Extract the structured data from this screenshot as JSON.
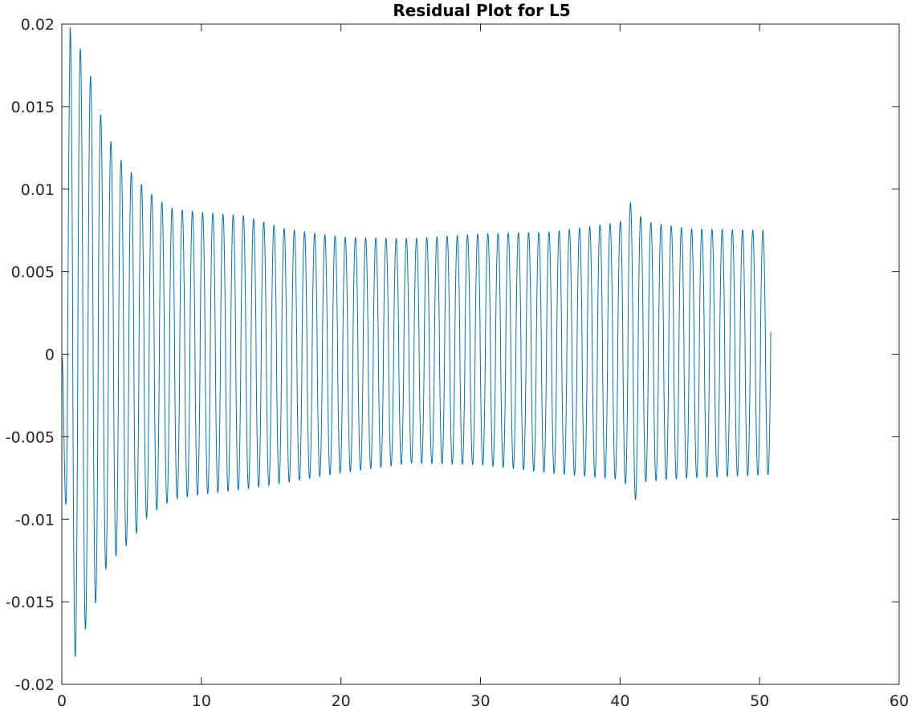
{
  "chart_data": {
    "type": "line",
    "title": "Residual Plot for L5",
    "xlabel": "",
    "ylabel": "",
    "xlim": [
      0,
      60
    ],
    "ylim": [
      -0.02,
      0.02
    ],
    "x_ticks": [
      0,
      10,
      20,
      30,
      40,
      50,
      60
    ],
    "x_tick_labels": [
      "0",
      "10",
      "20",
      "30",
      "40",
      "50",
      "60"
    ],
    "y_ticks": [
      0.02,
      0.015,
      0.01,
      0.005,
      0,
      -0.005,
      -0.01,
      -0.015,
      -0.02
    ],
    "y_tick_labels": [
      "0.02",
      "0.015",
      "0.01",
      "0.005",
      "0",
      "-0.005",
      "-0.01",
      "-0.015",
      "-0.02"
    ],
    "grid": false,
    "box": true,
    "series": [
      {
        "color": "#0072BD",
        "description": "Residual oscillation, period ~0.73, data x from 0 to ~50.8",
        "period": 0.73,
        "x_start": 0.0,
        "x_end": 50.8,
        "envelope_x": [
          0.0,
          0.6,
          1.5,
          2.2,
          3.0,
          4.0,
          5.0,
          6.0,
          7.0,
          8.0,
          10.0,
          13.0,
          16.0,
          20.0,
          25.0,
          30.0,
          35.0,
          40.0,
          40.6,
          41.0,
          41.4,
          42.0,
          45.0,
          50.8
        ],
        "envelope_upper": [
          0.0,
          0.0198,
          0.0182,
          0.0165,
          0.0138,
          0.012,
          0.011,
          0.01,
          0.0093,
          0.0088,
          0.0086,
          0.0084,
          0.0076,
          0.0071,
          0.007,
          0.0073,
          0.0074,
          0.008,
          0.0094,
          0.0088,
          0.0084,
          0.008,
          0.0076,
          0.0075
        ],
        "envelope_lower": [
          -0.0013,
          -0.0192,
          -0.017,
          -0.0158,
          -0.0132,
          -0.0121,
          -0.0113,
          -0.01,
          -0.0093,
          -0.0088,
          -0.0085,
          -0.0082,
          -0.0078,
          -0.0072,
          -0.0066,
          -0.0067,
          -0.0072,
          -0.0076,
          -0.008,
          -0.0092,
          -0.0078,
          -0.0077,
          -0.0075,
          -0.0073
        ]
      }
    ]
  }
}
